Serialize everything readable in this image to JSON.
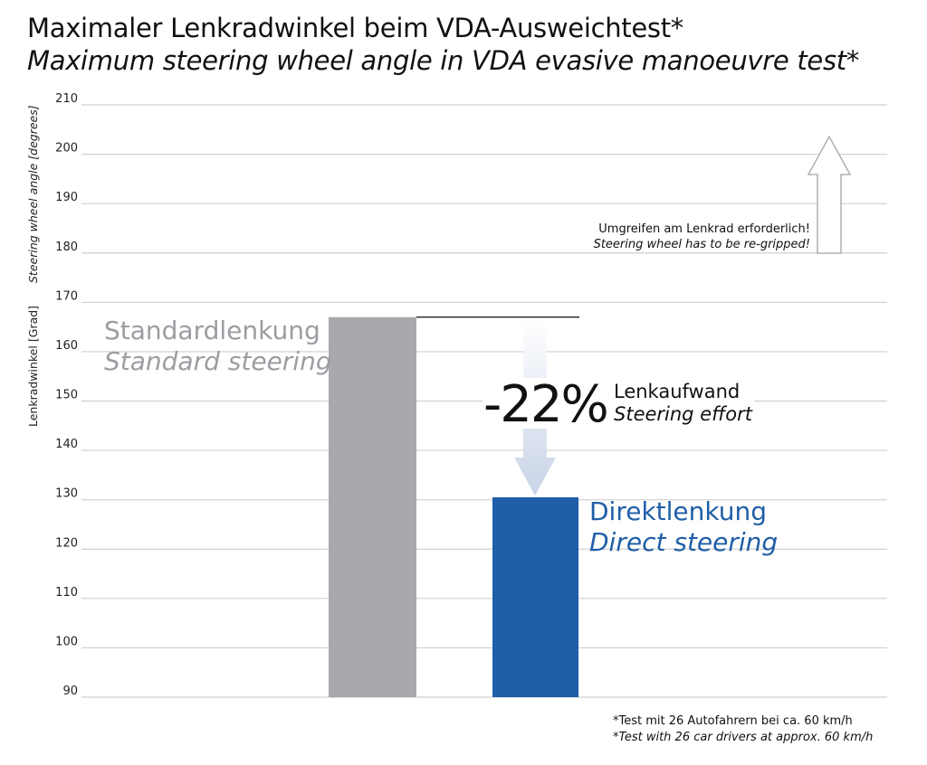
{
  "title_de": "Maximaler Lenkradwinkel beim VDA-Ausweichtest*",
  "title_en": "Maximum steering wheel angle in VDA evasive manoeuvre test*",
  "chart_data": {
    "type": "bar",
    "title": "Maximaler Lenkradwinkel beim VDA-Ausweichtest* / Maximum steering wheel angle in VDA evasive manoeuvre test*",
    "ylabel_de": "Lenkradwinkel [Grad]",
    "ylabel_en": "Steering wheel angle [degrees]",
    "ylim": [
      90,
      210
    ],
    "yticks": [
      90,
      100,
      110,
      120,
      130,
      140,
      150,
      160,
      170,
      180,
      190,
      200,
      210
    ],
    "grid": true,
    "categories": [
      {
        "label_de": "Standardlenkung",
        "label_en": "Standard steering",
        "value": 167,
        "color": "#a7a9ad"
      },
      {
        "label_de": "Direktlenkung",
        "label_en": "Direct steering",
        "value": 130.5,
        "color": "#1f5ea8"
      }
    ],
    "reduction": {
      "percent": "-22%",
      "label_de": "Lenkaufwand",
      "label_en": "Steering effort"
    },
    "note": {
      "text_de": "Umgreifen am Lenkrad erforderlich!",
      "text_en": "Steering wheel has to be re-gripped!",
      "threshold_value": 180
    },
    "footnote_de": "*Test mit 26 Autofahrern bei ca. 60 km/h",
    "footnote_en": "*Test with 26 car drivers at approx. 60 km/h"
  }
}
